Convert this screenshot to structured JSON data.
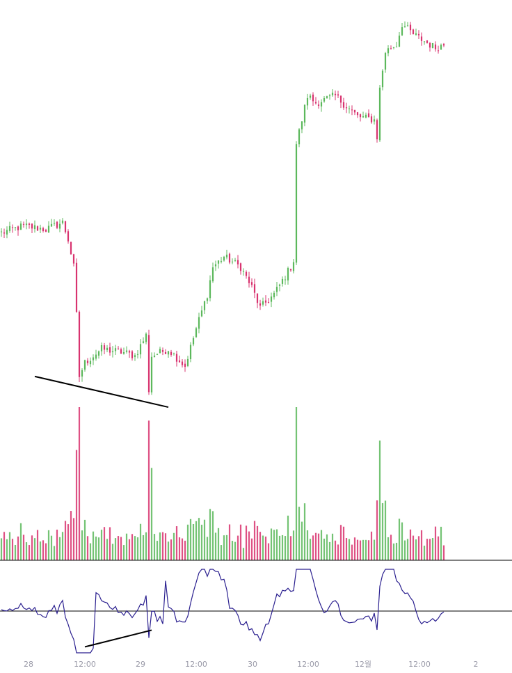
{
  "chart_data": {
    "type": "candlestick",
    "title": "",
    "colors": {
      "up": "#5cb85c",
      "down": "#d8336f",
      "indicator": "#2a1f8f",
      "annotation": "#000000",
      "axis_text": "#9a9aa8"
    },
    "x_ticks": [
      "28",
      "12:00",
      "29",
      "12:00",
      "30",
      "12:00",
      "12월",
      "12:00",
      "2"
    ],
    "price_waypoints": [
      [
        0,
        100.0
      ],
      [
        8,
        101.0
      ],
      [
        16,
        100.5
      ],
      [
        22,
        101.5
      ],
      [
        24,
        99.0
      ],
      [
        26,
        95.0
      ],
      [
        27,
        88.0
      ],
      [
        28,
        79.0
      ],
      [
        30,
        81.0
      ],
      [
        36,
        83.0
      ],
      [
        44,
        82.5
      ],
      [
        48,
        82.0
      ],
      [
        52,
        85.0
      ],
      [
        53,
        77.0
      ],
      [
        54,
        82.0
      ],
      [
        60,
        83.0
      ],
      [
        66,
        80.5
      ],
      [
        70,
        86.0
      ],
      [
        74,
        91.0
      ],
      [
        76,
        95.0
      ],
      [
        80,
        96.5
      ],
      [
        86,
        95.0
      ],
      [
        90,
        92.0
      ],
      [
        93,
        89.0
      ],
      [
        98,
        91.0
      ],
      [
        104,
        95.0
      ],
      [
        105,
        96.0
      ],
      [
        106,
        113.0
      ],
      [
        110,
        120.0
      ],
      [
        113,
        119.0
      ],
      [
        120,
        120.0
      ],
      [
        128,
        117.0
      ],
      [
        134,
        116.5
      ],
      [
        135,
        114.0
      ],
      [
        136,
        121.0
      ],
      [
        138,
        126.5
      ],
      [
        142,
        127.5
      ],
      [
        144,
        130.5
      ],
      [
        148,
        129.0
      ],
      [
        156,
        127.0
      ],
      [
        159,
        127.5
      ]
    ],
    "price_ylim": [
      74,
      133
    ],
    "trendlines": {
      "price": {
        "from": [
          12,
          79.0
        ],
        "to": [
          60,
          74.5
        ]
      },
      "indicator": {
        "from": [
          30,
          -30
        ],
        "to": [
          54,
          -16
        ]
      }
    },
    "indicator_zero_line": 0,
    "indicator_ylim": [
      -35,
      35
    ]
  }
}
